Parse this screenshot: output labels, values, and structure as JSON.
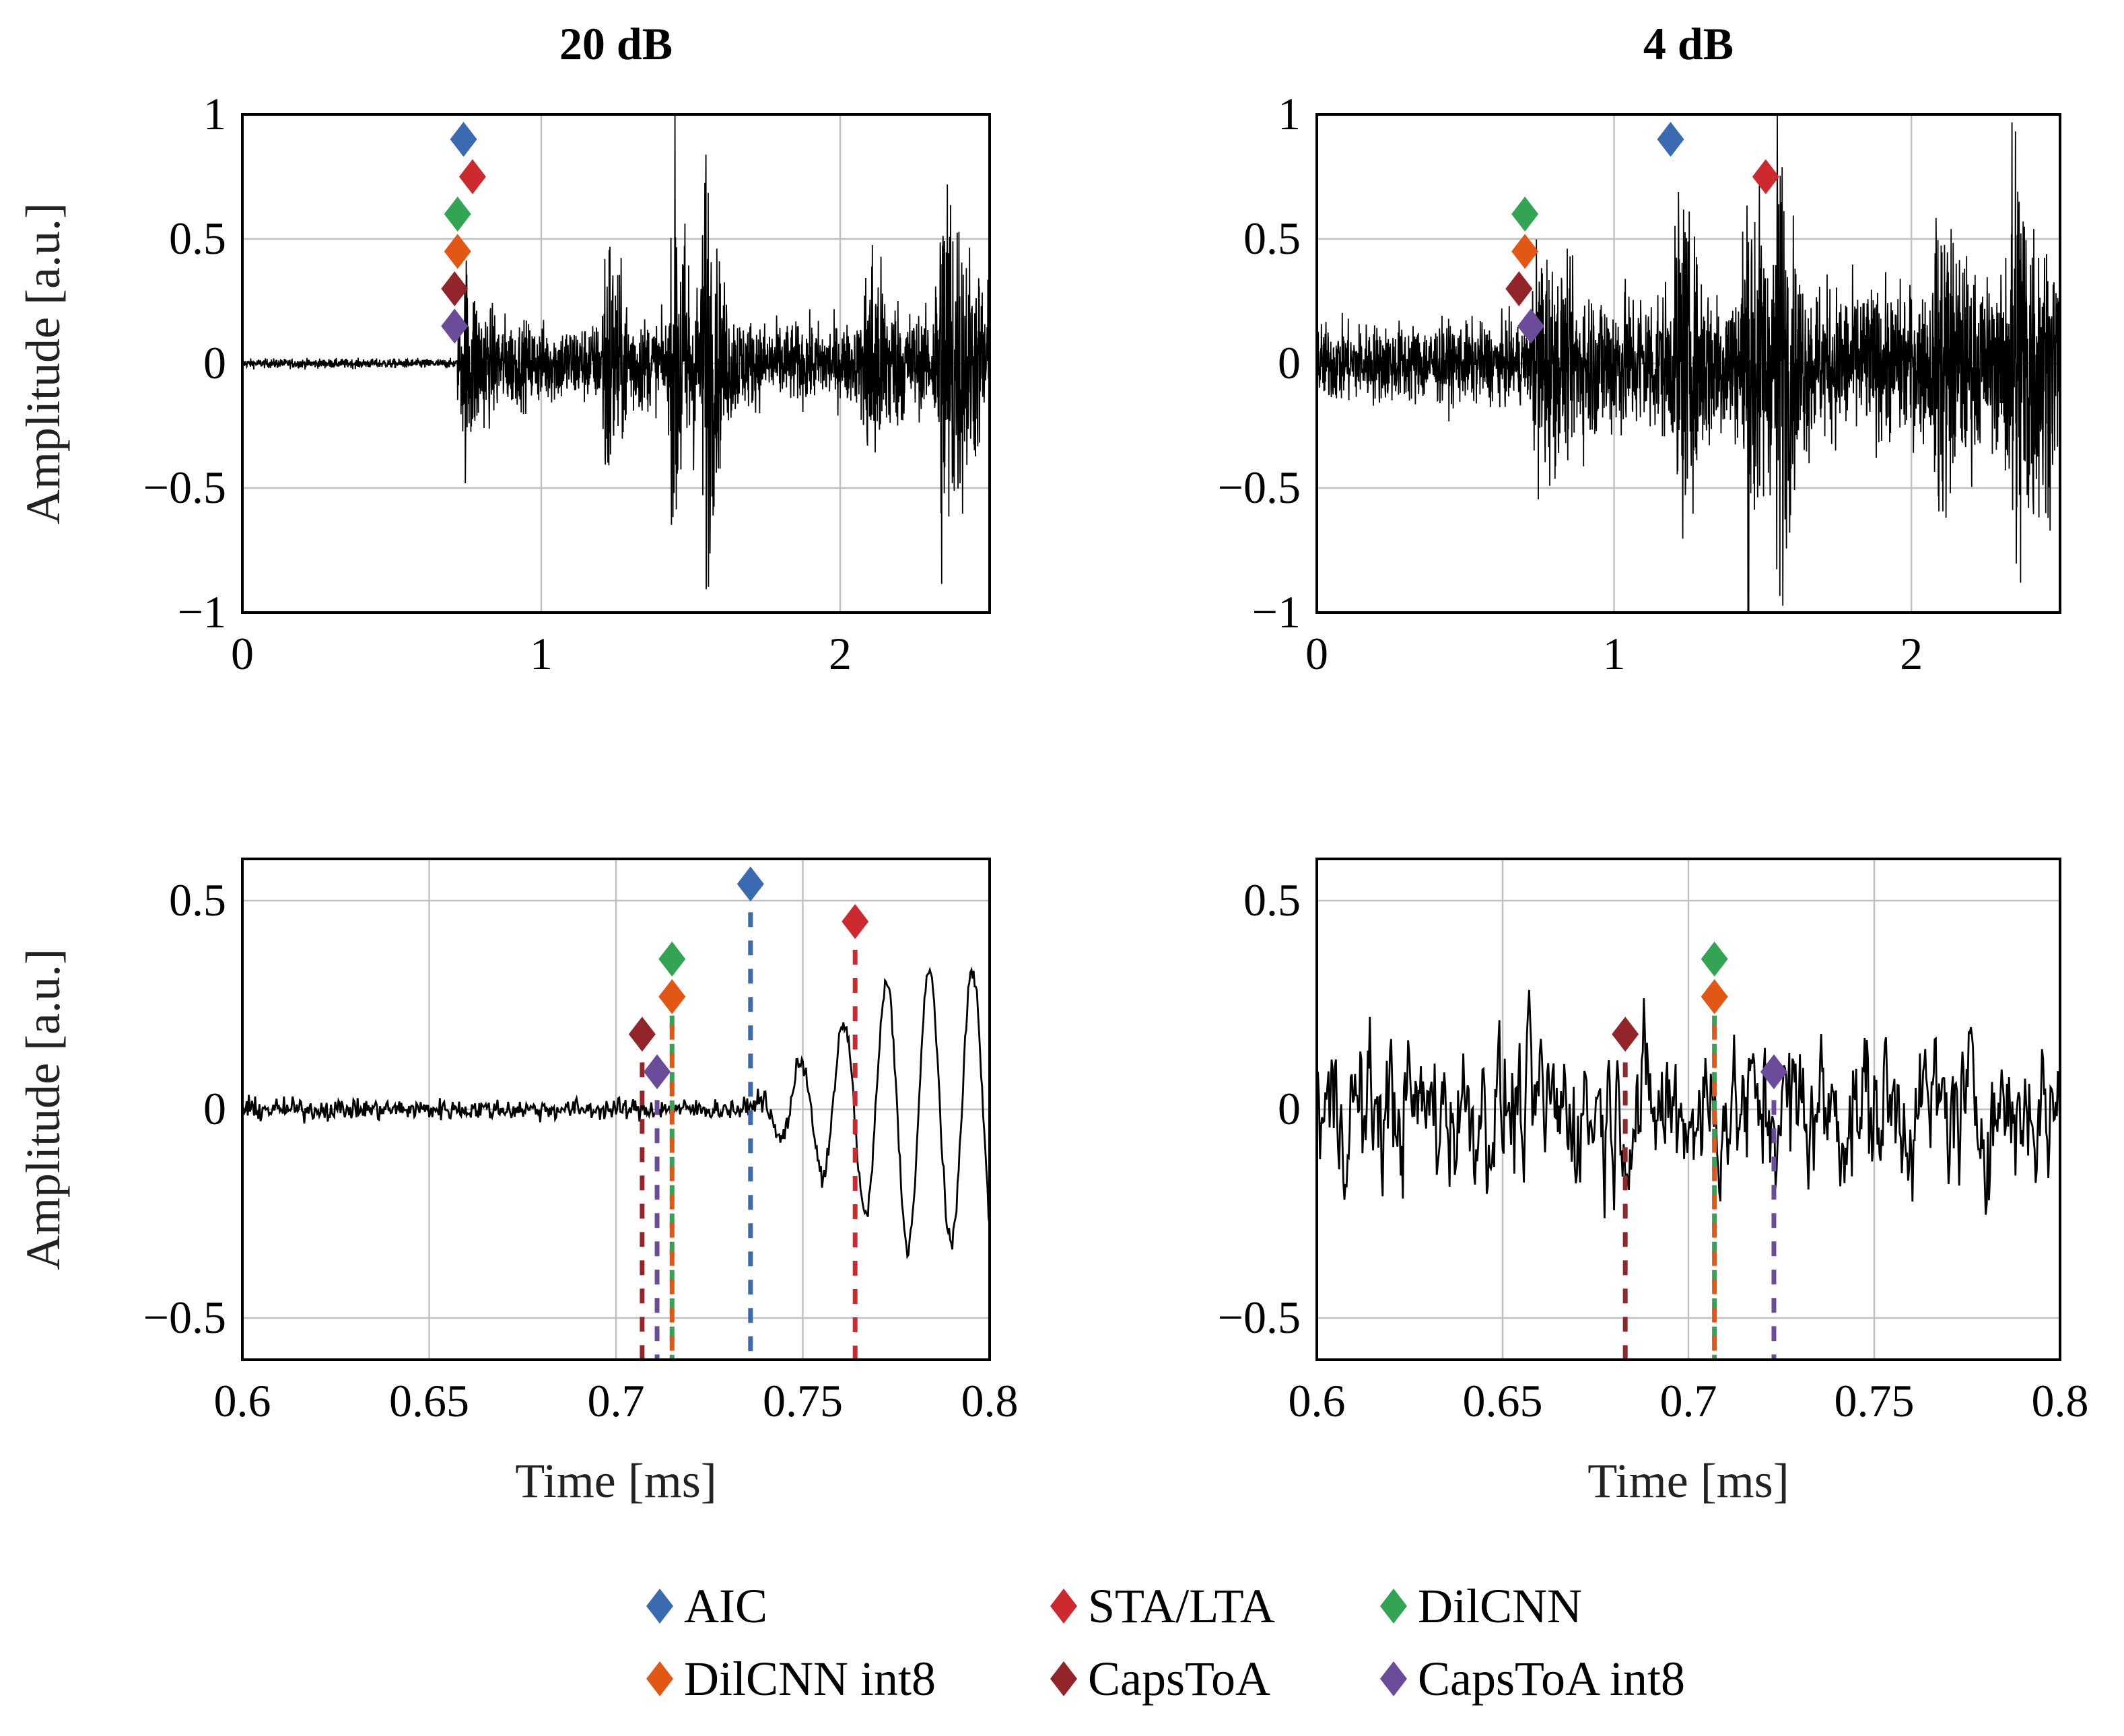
{
  "colors": {
    "AIC": "#3a6ab0",
    "STA/LTA": "#cc2a2e",
    "DilCNN": "#33a354",
    "DilCNN int8": "#e35714",
    "CapsToA": "#922529",
    "CapsToA int8": "#6b4c9a",
    "signal": "#000000",
    "grid": "#c0c0c0"
  },
  "legend": [
    {
      "label": "AIC",
      "color": "#3a6ab0"
    },
    {
      "label": "STA/LTA",
      "color": "#cc2a2e"
    },
    {
      "label": "DilCNN",
      "color": "#33a354"
    },
    {
      "label": "DilCNN int8",
      "color": "#e35714"
    },
    {
      "label": "CapsToA",
      "color": "#922529"
    },
    {
      "label": "CapsToA int8",
      "color": "#6b4c9a"
    }
  ],
  "chart_data": [
    {
      "type": "line",
      "title": "20 dB",
      "xlabel": "",
      "ylabel": "Amplitude [a.u.]",
      "xlim": [
        0,
        2.5
      ],
      "ylim": [
        -1,
        1
      ],
      "xticks": [
        "0",
        "1",
        "2"
      ],
      "xtick_vals": [
        0,
        1,
        2
      ],
      "yticks": [
        "−1",
        "−0.5",
        "0",
        "0.5",
        "1"
      ],
      "ytick_vals": [
        -1,
        -0.5,
        0,
        0.5,
        1
      ],
      "grid": true,
      "markers": [
        {
          "name": "AIC",
          "x": 0.74,
          "y": 0.9
        },
        {
          "name": "STA/LTA",
          "x": 0.77,
          "y": 0.75
        },
        {
          "name": "DilCNN",
          "x": 0.72,
          "y": 0.6
        },
        {
          "name": "DilCNN int8",
          "x": 0.72,
          "y": 0.45
        },
        {
          "name": "CapsToA",
          "x": 0.71,
          "y": 0.3
        },
        {
          "name": "CapsToA int8",
          "x": 0.71,
          "y": 0.15
        }
      ],
      "signal": {
        "snr_db": 20
      }
    },
    {
      "type": "line",
      "title": "4 dB",
      "xlabel": "",
      "ylabel": "",
      "xlim": [
        0,
        2.5
      ],
      "ylim": [
        -1,
        1
      ],
      "xticks": [
        "0",
        "1",
        "2"
      ],
      "xtick_vals": [
        0,
        1,
        2
      ],
      "yticks": [
        "−1",
        "−0.5",
        "0",
        "0.5",
        "1"
      ],
      "ytick_vals": [
        -1,
        -0.5,
        0,
        0.5,
        1
      ],
      "grid": true,
      "markers": [
        {
          "name": "AIC",
          "x": 1.19,
          "y": 0.9
        },
        {
          "name": "STA/LTA",
          "x": 1.51,
          "y": 0.75
        },
        {
          "name": "DilCNN",
          "x": 0.7,
          "y": 0.6
        },
        {
          "name": "DilCNN int8",
          "x": 0.7,
          "y": 0.45
        },
        {
          "name": "CapsToA",
          "x": 0.68,
          "y": 0.3
        },
        {
          "name": "CapsToA int8",
          "x": 0.72,
          "y": 0.15
        }
      ],
      "signal": {
        "snr_db": 4
      }
    },
    {
      "type": "line",
      "title": "",
      "xlabel": "Time [ms]",
      "ylabel": "Amplitude [a.u.]",
      "xlim": [
        0.6,
        0.8
      ],
      "ylim": [
        -0.6,
        0.6
      ],
      "xticks": [
        "0.6",
        "0.65",
        "0.7",
        "0.75",
        "0.8"
      ],
      "xtick_vals": [
        0.6,
        0.65,
        0.7,
        0.75,
        0.8
      ],
      "yticks": [
        "−0.5",
        "0",
        "0.5"
      ],
      "ytick_vals": [
        -0.5,
        0,
        0.5
      ],
      "grid": true,
      "markers": [
        {
          "name": "AIC",
          "x": 0.736,
          "y": 0.54
        },
        {
          "name": "STA/LTA",
          "x": 0.764,
          "y": 0.45
        },
        {
          "name": "DilCNN",
          "x": 0.715,
          "y": 0.36
        },
        {
          "name": "DilCNN int8",
          "x": 0.715,
          "y": 0.27
        },
        {
          "name": "CapsToA",
          "x": 0.707,
          "y": 0.18
        },
        {
          "name": "CapsToA int8",
          "x": 0.711,
          "y": 0.09
        }
      ],
      "vlines": true,
      "signal": {
        "snr_db": 20
      }
    },
    {
      "type": "line",
      "title": "",
      "xlabel": "Time [ms]",
      "ylabel": "",
      "xlim": [
        0.6,
        0.8
      ],
      "ylim": [
        -0.6,
        0.6
      ],
      "xticks": [
        "0.6",
        "0.65",
        "0.7",
        "0.75",
        "0.8"
      ],
      "xtick_vals": [
        0.6,
        0.65,
        0.7,
        0.75,
        0.8
      ],
      "yticks": [
        "−0.5",
        "0",
        "0.5"
      ],
      "ytick_vals": [
        -0.5,
        0,
        0.5
      ],
      "grid": true,
      "markers": [
        {
          "name": "DilCNN",
          "x": 0.707,
          "y": 0.36
        },
        {
          "name": "DilCNN int8",
          "x": 0.707,
          "y": 0.27
        },
        {
          "name": "CapsToA",
          "x": 0.683,
          "y": 0.18
        },
        {
          "name": "CapsToA int8",
          "x": 0.723,
          "y": 0.09
        }
      ],
      "vlines": true,
      "signal": {
        "snr_db": 4
      }
    }
  ]
}
